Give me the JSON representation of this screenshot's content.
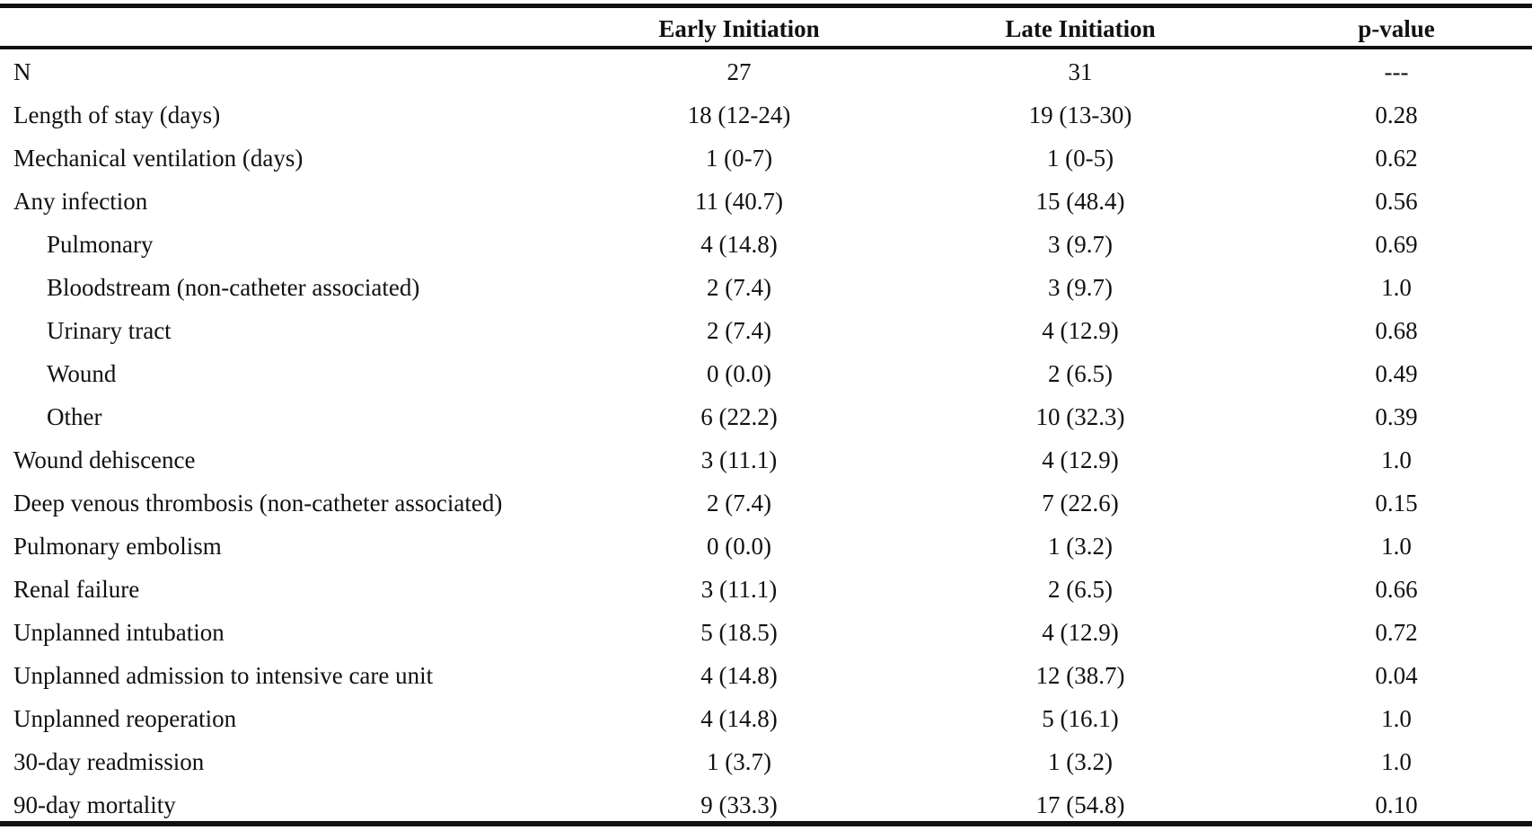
{
  "table": {
    "headers": {
      "label": "",
      "early": "Early Initiation",
      "late": "Late Initiation",
      "p": "p-value"
    },
    "rows": [
      {
        "label": "N",
        "indent": false,
        "early": "27",
        "late": "31",
        "p": "---"
      },
      {
        "label": "Length of stay (days)",
        "indent": false,
        "early": "18 (12-24)",
        "late": "19 (13-30)",
        "p": "0.28"
      },
      {
        "label": "Mechanical ventilation (days)",
        "indent": false,
        "early": "1 (0-7)",
        "late": "1 (0-5)",
        "p": "0.62"
      },
      {
        "label": "Any infection",
        "indent": false,
        "early": "11 (40.7)",
        "late": "15 (48.4)",
        "p": "0.56"
      },
      {
        "label": "Pulmonary",
        "indent": true,
        "early": "4 (14.8)",
        "late": "3 (9.7)",
        "p": "0.69"
      },
      {
        "label": "Bloodstream (non-catheter associated)",
        "indent": true,
        "early": "2 (7.4)",
        "late": "3 (9.7)",
        "p": "1.0"
      },
      {
        "label": "Urinary tract",
        "indent": true,
        "early": "2 (7.4)",
        "late": "4 (12.9)",
        "p": "0.68"
      },
      {
        "label": "Wound",
        "indent": true,
        "early": "0 (0.0)",
        "late": "2 (6.5)",
        "p": "0.49"
      },
      {
        "label": "Other",
        "indent": true,
        "early": "6 (22.2)",
        "late": "10 (32.3)",
        "p": "0.39"
      },
      {
        "label": "Wound dehiscence",
        "indent": false,
        "early": "3 (11.1)",
        "late": "4 (12.9)",
        "p": "1.0"
      },
      {
        "label": "Deep venous thrombosis (non-catheter associated)",
        "indent": false,
        "early": "2 (7.4)",
        "late": "7 (22.6)",
        "p": "0.15"
      },
      {
        "label": "Pulmonary embolism",
        "indent": false,
        "early": "0 (0.0)",
        "late": "1 (3.2)",
        "p": "1.0"
      },
      {
        "label": "Renal failure",
        "indent": false,
        "early": "3 (11.1)",
        "late": "2 (6.5)",
        "p": "0.66"
      },
      {
        "label": "Unplanned intubation",
        "indent": false,
        "early": "5 (18.5)",
        "late": "4 (12.9)",
        "p": "0.72"
      },
      {
        "label": "Unplanned admission to intensive care unit",
        "indent": false,
        "early": "4 (14.8)",
        "late": "12 (38.7)",
        "p": "0.04"
      },
      {
        "label": "Unplanned reoperation",
        "indent": false,
        "early": "4 (14.8)",
        "late": "5 (16.1)",
        "p": "1.0"
      },
      {
        "label": "30-day readmission",
        "indent": false,
        "early": "1 (3.7)",
        "late": "1 (3.2)",
        "p": "1.0"
      },
      {
        "label": "90-day mortality",
        "indent": false,
        "early": "9 (33.3)",
        "late": "17 (54.8)",
        "p": "0.10"
      }
    ]
  }
}
